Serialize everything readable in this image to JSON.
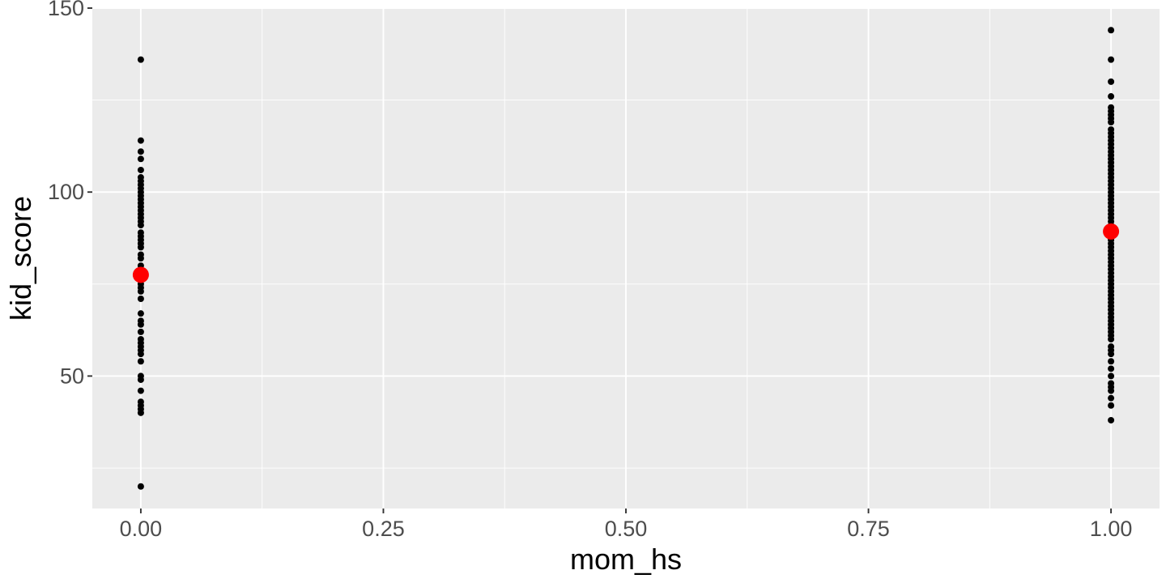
{
  "chart_data": {
    "type": "scatter",
    "title": "",
    "xlabel": "mom_hs",
    "ylabel": "kid_score",
    "xlim": [
      -0.05,
      1.05
    ],
    "ylim": [
      14,
      150
    ],
    "x_ticks": [
      0.0,
      0.25,
      0.5,
      0.75,
      1.0
    ],
    "x_tick_labels": [
      "0.00",
      "0.25",
      "0.50",
      "0.75",
      "1.00"
    ],
    "y_ticks": [
      50,
      100,
      150
    ],
    "y_tick_labels": [
      "50",
      "100",
      "150"
    ],
    "grid": true,
    "legend": "none",
    "colors": {
      "panel_background": "#ebebeb",
      "grid_line": "#ffffff",
      "points": "#000000",
      "group_means": "#ff0000",
      "tick_label": "#4d4d4d",
      "tick_mark": "#333333"
    },
    "series": [
      {
        "color": "#000000",
        "points": [
          {
            "x": 0,
            "y": 20
          },
          {
            "x": 0,
            "y": 40
          },
          {
            "x": 0,
            "y": 41
          },
          {
            "x": 0,
            "y": 42
          },
          {
            "x": 0,
            "y": 43
          },
          {
            "x": 0,
            "y": 46
          },
          {
            "x": 0,
            "y": 49
          },
          {
            "x": 0,
            "y": 50
          },
          {
            "x": 0,
            "y": 54
          },
          {
            "x": 0,
            "y": 56
          },
          {
            "x": 0,
            "y": 57
          },
          {
            "x": 0,
            "y": 58
          },
          {
            "x": 0,
            "y": 59
          },
          {
            "x": 0,
            "y": 60
          },
          {
            "x": 0,
            "y": 62
          },
          {
            "x": 0,
            "y": 64
          },
          {
            "x": 0,
            "y": 65
          },
          {
            "x": 0,
            "y": 67
          },
          {
            "x": 0,
            "y": 71
          },
          {
            "x": 0,
            "y": 73
          },
          {
            "x": 0,
            "y": 74
          },
          {
            "x": 0,
            "y": 75
          },
          {
            "x": 0,
            "y": 76
          },
          {
            "x": 0,
            "y": 77
          },
          {
            "x": 0,
            "y": 78
          },
          {
            "x": 0,
            "y": 79
          },
          {
            "x": 0,
            "y": 80
          },
          {
            "x": 0,
            "y": 82
          },
          {
            "x": 0,
            "y": 83
          },
          {
            "x": 0,
            "y": 85
          },
          {
            "x": 0,
            "y": 86
          },
          {
            "x": 0,
            "y": 87
          },
          {
            "x": 0,
            "y": 88
          },
          {
            "x": 0,
            "y": 89
          },
          {
            "x": 0,
            "y": 91
          },
          {
            "x": 0,
            "y": 92
          },
          {
            "x": 0,
            "y": 93
          },
          {
            "x": 0,
            "y": 94
          },
          {
            "x": 0,
            "y": 95
          },
          {
            "x": 0,
            "y": 96
          },
          {
            "x": 0,
            "y": 97
          },
          {
            "x": 0,
            "y": 98
          },
          {
            "x": 0,
            "y": 99
          },
          {
            "x": 0,
            "y": 100
          },
          {
            "x": 0,
            "y": 101
          },
          {
            "x": 0,
            "y": 102
          },
          {
            "x": 0,
            "y": 103
          },
          {
            "x": 0,
            "y": 104
          },
          {
            "x": 0,
            "y": 106
          },
          {
            "x": 0,
            "y": 109
          },
          {
            "x": 0,
            "y": 111
          },
          {
            "x": 0,
            "y": 114
          },
          {
            "x": 0,
            "y": 136
          },
          {
            "x": 1,
            "y": 38
          },
          {
            "x": 1,
            "y": 42
          },
          {
            "x": 1,
            "y": 44
          },
          {
            "x": 1,
            "y": 46
          },
          {
            "x": 1,
            "y": 47
          },
          {
            "x": 1,
            "y": 48
          },
          {
            "x": 1,
            "y": 50
          },
          {
            "x": 1,
            "y": 52
          },
          {
            "x": 1,
            "y": 54
          },
          {
            "x": 1,
            "y": 56
          },
          {
            "x": 1,
            "y": 57
          },
          {
            "x": 1,
            "y": 58
          },
          {
            "x": 1,
            "y": 60
          },
          {
            "x": 1,
            "y": 61
          },
          {
            "x": 1,
            "y": 62
          },
          {
            "x": 1,
            "y": 63
          },
          {
            "x": 1,
            "y": 64
          },
          {
            "x": 1,
            "y": 65
          },
          {
            "x": 1,
            "y": 66
          },
          {
            "x": 1,
            "y": 67
          },
          {
            "x": 1,
            "y": 68
          },
          {
            "x": 1,
            "y": 69
          },
          {
            "x": 1,
            "y": 70
          },
          {
            "x": 1,
            "y": 71
          },
          {
            "x": 1,
            "y": 72
          },
          {
            "x": 1,
            "y": 73
          },
          {
            "x": 1,
            "y": 74
          },
          {
            "x": 1,
            "y": 75
          },
          {
            "x": 1,
            "y": 76
          },
          {
            "x": 1,
            "y": 77
          },
          {
            "x": 1,
            "y": 78
          },
          {
            "x": 1,
            "y": 79
          },
          {
            "x": 1,
            "y": 80
          },
          {
            "x": 1,
            "y": 81
          },
          {
            "x": 1,
            "y": 82
          },
          {
            "x": 1,
            "y": 83
          },
          {
            "x": 1,
            "y": 84
          },
          {
            "x": 1,
            "y": 85
          },
          {
            "x": 1,
            "y": 86
          },
          {
            "x": 1,
            "y": 87
          },
          {
            "x": 1,
            "y": 88
          },
          {
            "x": 1,
            "y": 89
          },
          {
            "x": 1,
            "y": 90
          },
          {
            "x": 1,
            "y": 91
          },
          {
            "x": 1,
            "y": 92
          },
          {
            "x": 1,
            "y": 93
          },
          {
            "x": 1,
            "y": 94
          },
          {
            "x": 1,
            "y": 95
          },
          {
            "x": 1,
            "y": 96
          },
          {
            "x": 1,
            "y": 97
          },
          {
            "x": 1,
            "y": 98
          },
          {
            "x": 1,
            "y": 99
          },
          {
            "x": 1,
            "y": 100
          },
          {
            "x": 1,
            "y": 101
          },
          {
            "x": 1,
            "y": 102
          },
          {
            "x": 1,
            "y": 103
          },
          {
            "x": 1,
            "y": 104
          },
          {
            "x": 1,
            "y": 105
          },
          {
            "x": 1,
            "y": 106
          },
          {
            "x": 1,
            "y": 107
          },
          {
            "x": 1,
            "y": 108
          },
          {
            "x": 1,
            "y": 109
          },
          {
            "x": 1,
            "y": 110
          },
          {
            "x": 1,
            "y": 111
          },
          {
            "x": 1,
            "y": 112
          },
          {
            "x": 1,
            "y": 113
          },
          {
            "x": 1,
            "y": 114
          },
          {
            "x": 1,
            "y": 115
          },
          {
            "x": 1,
            "y": 116
          },
          {
            "x": 1,
            "y": 117
          },
          {
            "x": 1,
            "y": 119
          },
          {
            "x": 1,
            "y": 120
          },
          {
            "x": 1,
            "y": 121
          },
          {
            "x": 1,
            "y": 122
          },
          {
            "x": 1,
            "y": 123
          },
          {
            "x": 1,
            "y": 126
          },
          {
            "x": 1,
            "y": 130
          },
          {
            "x": 1,
            "y": 136
          },
          {
            "x": 1,
            "y": 144
          }
        ]
      },
      {
        "color": "#ff0000",
        "points": [
          {
            "x": 0,
            "y": 77.5
          },
          {
            "x": 1,
            "y": 89.3
          }
        ]
      }
    ]
  }
}
